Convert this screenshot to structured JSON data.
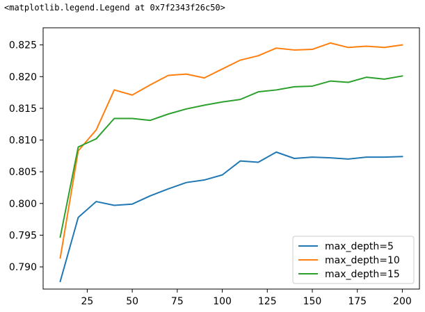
{
  "output_repr": "<matplotlib.legend.Legend at 0x7f2343f26c50>",
  "chart_data": {
    "type": "line",
    "title": "",
    "xlabel": "",
    "ylabel": "",
    "x": [
      10,
      20,
      30,
      40,
      50,
      60,
      70,
      80,
      90,
      100,
      110,
      120,
      130,
      140,
      150,
      160,
      170,
      180,
      190,
      200
    ],
    "xlim": [
      0.5,
      209.5
    ],
    "ylim": [
      0.7865,
      0.8277
    ],
    "xticks": [
      25,
      50,
      75,
      100,
      125,
      150,
      175,
      200
    ],
    "xtick_labels": [
      "25",
      "50",
      "75",
      "100",
      "125",
      "150",
      "175",
      "200"
    ],
    "yticks": [
      0.79,
      0.795,
      0.8,
      0.805,
      0.81,
      0.815,
      0.82,
      0.825
    ],
    "ytick_labels": [
      "0.790",
      "0.795",
      "0.800",
      "0.805",
      "0.810",
      "0.815",
      "0.820",
      "0.825"
    ],
    "grid": false,
    "legend_position": "lower-right",
    "series": [
      {
        "name": "max_depth=5",
        "color": "#1f77b4",
        "values": [
          0.7877,
          0.7978,
          0.8003,
          0.7997,
          0.7999,
          0.8012,
          0.8023,
          0.8033,
          0.8037,
          0.8045,
          0.8067,
          0.8065,
          0.8081,
          0.8071,
          0.8073,
          0.8072,
          0.807,
          0.8073,
          0.8073,
          0.8074
        ]
      },
      {
        "name": "max_depth=10",
        "color": "#ff7f0e",
        "values": [
          0.7914,
          0.8083,
          0.8116,
          0.8179,
          0.8171,
          0.8187,
          0.8202,
          0.8204,
          0.8198,
          0.8212,
          0.8226,
          0.8233,
          0.8245,
          0.8242,
          0.8243,
          0.8253,
          0.8246,
          0.8248,
          0.8246,
          0.825
        ]
      },
      {
        "name": "max_depth=15",
        "color": "#2ca02c",
        "values": [
          0.7947,
          0.8089,
          0.8102,
          0.8134,
          0.8134,
          0.8131,
          0.8141,
          0.8149,
          0.8155,
          0.816,
          0.8164,
          0.8176,
          0.8179,
          0.8184,
          0.8185,
          0.8193,
          0.8191,
          0.8199,
          0.8196,
          0.8201
        ]
      }
    ]
  }
}
